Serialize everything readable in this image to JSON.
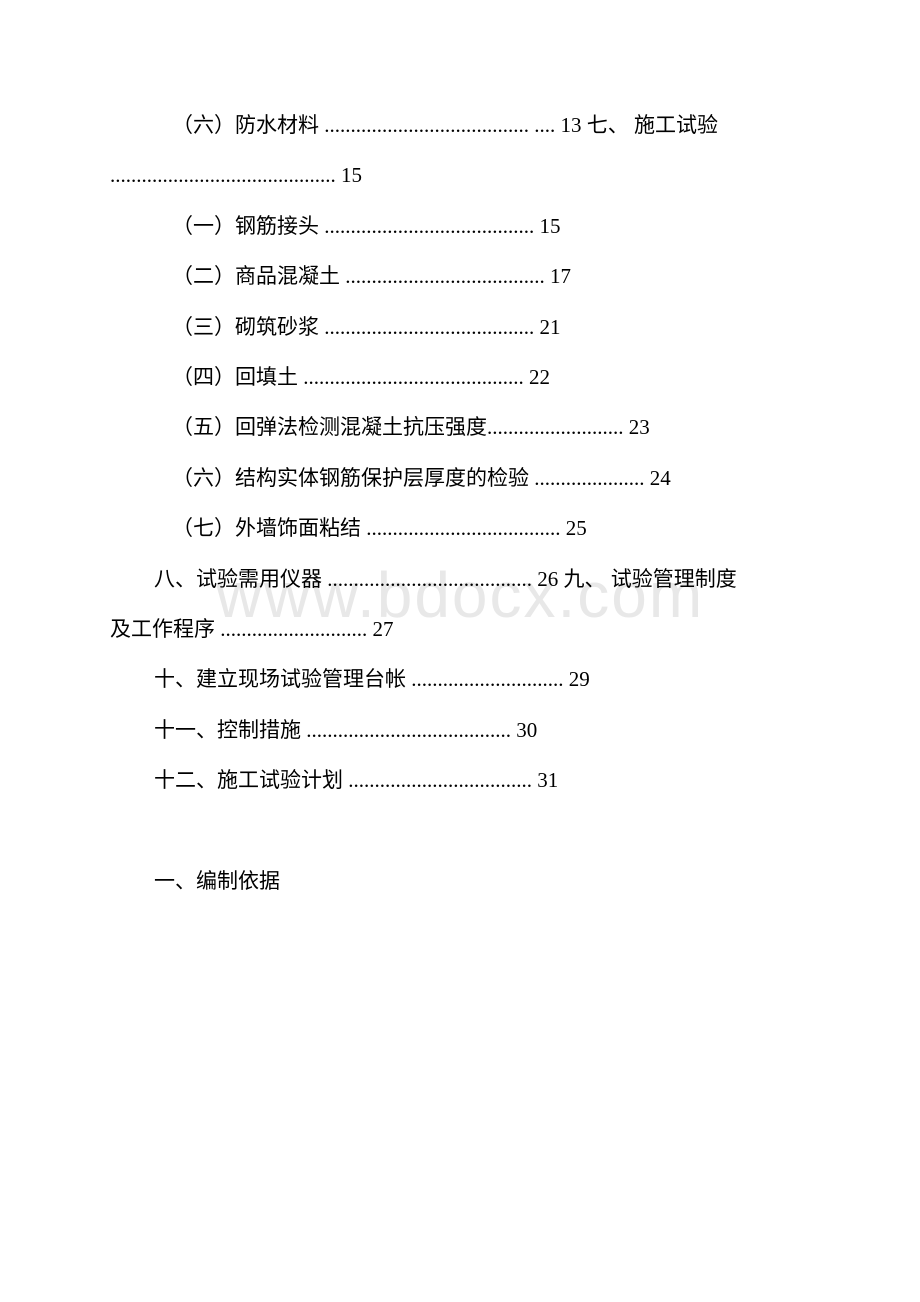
{
  "watermark": "www.bdocx.com",
  "toc": {
    "line1": "（六）防水材料 ....................................... .... 13 七、 施工试验",
    "line1b": "........................................... 15",
    "line2": "（一）钢筋接头 ........................................ 15",
    "line3": "（二）商品混凝土 ...................................... 17",
    "line4": "（三）砌筑砂浆 ........................................ 21",
    "line5": "（四）回填土 .......................................... 22",
    "line6": "（五）回弹法检测混凝土抗压强度.......................... 23",
    "line7": "（六）结构实体钢筋保护层厚度的检验 ..................... 24",
    "line8": "（七）外墙饰面粘结 ..................................... 25",
    "line9": "八、试验需用仪器 ....................................... 26 九、 试验管理制度",
    "line9b": "及工作程序 ............................ 27",
    "line10": "十、建立现场试验管理台帐 ............................. 29",
    "line11": "十一、控制措施 ....................................... 30",
    "line12": "十二、施工试验计划 ................................... 31"
  },
  "heading": "一、编制依据",
  "styles": {
    "background_color": "#ffffff",
    "text_color": "#000000",
    "watermark_color": "#e8e8e8",
    "font_size_body": 21,
    "font_size_watermark": 64,
    "line_height": 2.4
  }
}
